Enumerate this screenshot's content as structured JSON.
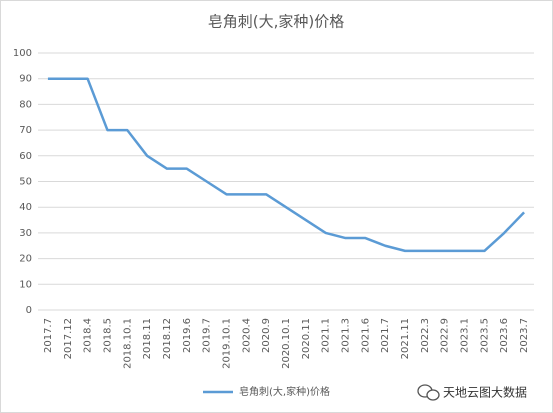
{
  "chart_data": {
    "type": "line",
    "title": "皂角刺(大,家种)价格",
    "categories": [
      "2017.7",
      "2017.12",
      "2018.4",
      "2018.5",
      "2018.10.1",
      "2018.11",
      "2018.12",
      "2019.6",
      "2019.7",
      "2019.10.1",
      "2020.4",
      "2020.9",
      "2020.10.1",
      "2020.11",
      "2021.1",
      "2021.3",
      "2021.6",
      "2021.7",
      "2021.11",
      "2022.3",
      "2022.9",
      "2023.1",
      "2023.5",
      "2023.6",
      "2023.7"
    ],
    "series": [
      {
        "name": "皂角刺(大,家种)价格",
        "color": "#5b9bd5",
        "values": [
          90,
          90,
          90,
          70,
          70,
          60,
          55,
          55,
          50,
          45,
          45,
          45,
          40,
          35,
          30,
          28,
          28,
          25,
          23,
          23,
          23,
          23,
          23,
          30,
          38
        ]
      }
    ],
    "ylim": [
      0,
      100
    ],
    "yticks": [
      0,
      10,
      20,
      30,
      40,
      50,
      60,
      70,
      80,
      90,
      100
    ],
    "grid": true,
    "legend": "bottom",
    "watermark": "天地云图大数据"
  }
}
